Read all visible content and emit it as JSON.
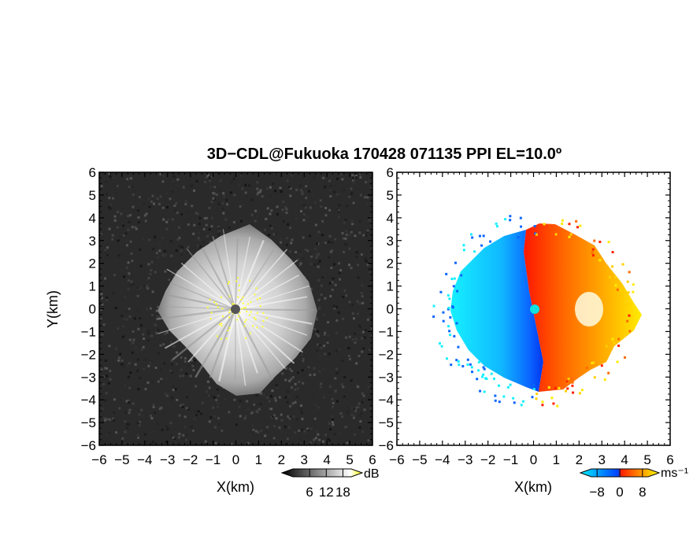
{
  "chart_data": {
    "title": "3D−CDL@Fukuoka 170428 071135 PPI EL=10.0º",
    "panels": [
      {
        "type": "heatmap",
        "name": "left",
        "xlabel": "X(km)",
        "ylabel": "Y(km)",
        "xlim": [
          -6,
          6
        ],
        "ylim": [
          -6,
          6
        ],
        "xticks": [
          "−6",
          "−5",
          "−4",
          "−3",
          "−2",
          "−1",
          "0",
          "1",
          "2",
          "3",
          "4",
          "5",
          "6"
        ],
        "yticks": [
          "6",
          "5",
          "4",
          "3",
          "2",
          "1",
          "0",
          "−1",
          "−2",
          "−3",
          "−4",
          "−5",
          "−6"
        ],
        "colorbar": {
          "label": "dB",
          "ticks": [
            "6",
            "12",
            "18"
          ],
          "range": [
            0,
            21
          ],
          "colors": [
            "#000000",
            "#ffffff",
            "#ffff00"
          ]
        },
        "colormap": "grayscale with yellow saturation",
        "echo_radius_km": 3.8
      },
      {
        "type": "heatmap",
        "name": "right",
        "xlabel": "X(km)",
        "ylabel": "",
        "xlim": [
          -6,
          6
        ],
        "ylim": [
          -6,
          6
        ],
        "xticks": [
          "−6",
          "−5",
          "−4",
          "−3",
          "−2",
          "−1",
          "0",
          "1",
          "2",
          "3",
          "4",
          "5",
          "6"
        ],
        "yticks": [
          "6",
          "5",
          "4",
          "3",
          "2",
          "1",
          "0",
          "−1",
          "−2",
          "−3",
          "−4",
          "−5",
          "−6"
        ],
        "colorbar": {
          "label": "ms⁻¹",
          "ticks": [
            "−8",
            "0",
            "8"
          ],
          "range": [
            -10,
            10
          ],
          "colors": [
            "#00f0ff",
            "#0040ff",
            "#ff2000",
            "#ffff00"
          ]
        },
        "colormap": "diverging cyan-blue / red-yellow",
        "echo_radius_km": 3.8
      }
    ]
  }
}
